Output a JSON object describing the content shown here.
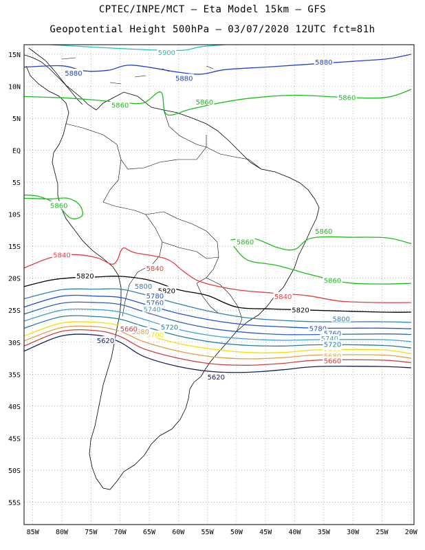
{
  "header": {
    "title_line1": "CPTEC/INPE/MCT –  Eta Model 15km – GFS",
    "title_line2": "Geopotential Height 500hPa – 03/07/2020 12UTC fct=81h"
  },
  "axes": {
    "lat_labels": [
      "15N",
      "10N",
      "5N",
      "EQ",
      "5S",
      "10S",
      "15S",
      "20S",
      "25S",
      "30S",
      "35S",
      "40S",
      "45S",
      "50S",
      "55S"
    ],
    "lat_values": [
      15,
      10,
      5,
      0,
      -5,
      -10,
      -15,
      -20,
      -25,
      -30,
      -35,
      -40,
      -45,
      -50,
      -55
    ],
    "lon_labels": [
      "85W",
      "80W",
      "75W",
      "70W",
      "65W",
      "60W",
      "55W",
      "50W",
      "45W",
      "40W",
      "35W",
      "30W",
      "25W",
      "20W"
    ],
    "lon_values": [
      -85,
      -80,
      -75,
      -70,
      -65,
      -60,
      -55,
      -50,
      -45,
      -40,
      -35,
      -30,
      -25,
      -20
    ],
    "lon_range": [
      -86.5,
      -19.5
    ],
    "lat_range": [
      -58.5,
      16.5
    ]
  },
  "contour_colors": {
    "5900": "#20c0c0",
    "5880": "#1e40d8",
    "5860": "#18c018",
    "5840": "#e83c3c",
    "5820": "#000000",
    "5800": "#2f80b0",
    "5780": "#1f50e0",
    "5760": "#3060c0",
    "5740": "#40a0d0",
    "5720": "#2080a0",
    "5700": "#f0e000",
    "5680": "#e0a040",
    "5660": "#d04040",
    "5620": "#141e60"
  },
  "contours": [
    {
      "level": "5900",
      "label": "5900",
      "pts": [
        [
          -82,
          16.5
        ],
        [
          -70,
          15.9
        ],
        [
          -60,
          15.6
        ],
        [
          -56,
          16.2
        ],
        [
          -52,
          16.5
        ]
      ],
      "lab": [
        -62,
        15.3
      ]
    },
    {
      "level": "5880",
      "label": "5880",
      "pts": [
        [
          -86.5,
          13
        ],
        [
          -80,
          13.2
        ],
        [
          -76,
          12.4
        ],
        [
          -72,
          12.5
        ],
        [
          -68,
          13.3
        ],
        [
          -60,
          12.2
        ],
        [
          -56,
          11.9
        ],
        [
          -52,
          12.6
        ],
        [
          -45,
          13
        ],
        [
          -40,
          13.3
        ],
        [
          -30,
          13.9
        ],
        [
          -24,
          14.3
        ],
        [
          -20,
          15
        ]
      ],
      "lab": [
        -78,
        12.1
      ]
    },
    {
      "level": "5880",
      "label": "5880",
      "pts": [],
      "lab": [
        -59,
        11.3
      ]
    },
    {
      "level": "5880",
      "label": "5880",
      "pts": [],
      "lab": [
        -35,
        13.8
      ]
    },
    {
      "level": "5860",
      "label": "5860",
      "pts": [
        [
          -86.5,
          8.4
        ],
        [
          -80,
          8.2
        ],
        [
          -75,
          7.9
        ],
        [
          -70,
          7.5
        ],
        [
          -66,
          7.4
        ],
        [
          -63,
          9.1
        ],
        [
          -62,
          5.6
        ],
        [
          -58,
          6.4
        ],
        [
          -54,
          7.2
        ],
        [
          -48,
          8.1
        ],
        [
          -40,
          8.6
        ],
        [
          -30,
          8.2
        ],
        [
          -24,
          8.3
        ],
        [
          -20,
          9.5
        ]
      ],
      "lab": [
        -70,
        7.1
      ]
    },
    {
      "level": "5860",
      "label": "5860",
      "pts": [],
      "lab": [
        -55.5,
        7.6
      ]
    },
    {
      "level": "5860",
      "label": "5860",
      "pts": [],
      "lab": [
        -31,
        8.3
      ]
    },
    {
      "level": "5860",
      "label": "5860",
      "pts": [
        [
          -86.5,
          -7
        ],
        [
          -84,
          -7.2
        ],
        [
          -81,
          -8.4
        ],
        [
          -78.5,
          -10.6
        ],
        [
          -76.5,
          -10.2
        ],
        [
          -77,
          -8.5
        ],
        [
          -79,
          -7.5
        ],
        [
          -82,
          -7.6
        ],
        [
          -86.5,
          -7.5
        ]
      ],
      "lab": [
        -80.5,
        -8.6
      ]
    },
    {
      "level": "5860",
      "label": "5860",
      "pts": [
        [
          -51,
          -14
        ],
        [
          -47,
          -13.8
        ],
        [
          -43,
          -15.2
        ],
        [
          -40,
          -15.5
        ],
        [
          -37,
          -13.7
        ],
        [
          -30,
          -13.6
        ],
        [
          -24,
          -13.7
        ],
        [
          -20,
          -14.6
        ]
      ],
      "lab": [
        -48.5,
        -14.3
      ]
    },
    {
      "level": "5860",
      "label": "5860",
      "pts": [],
      "lab": [
        -35,
        -12.6
      ]
    },
    {
      "level": "5860",
      "label": "5860",
      "pts": [
        [
          -50.5,
          -15
        ],
        [
          -48,
          -17.2
        ],
        [
          -43,
          -18
        ],
        [
          -37,
          -19.5
        ],
        [
          -31,
          -20.7
        ],
        [
          -25,
          -20.9
        ],
        [
          -20,
          -20.8
        ]
      ],
      "lab": [
        -33.5,
        -20.3
      ]
    },
    {
      "level": "5840",
      "label": "5840",
      "pts": [
        [
          -86.5,
          -18.4
        ],
        [
          -82,
          -16.8
        ],
        [
          -78,
          -16.3
        ],
        [
          -74,
          -16.8
        ],
        [
          -71.5,
          -17.8
        ],
        [
          -70.5,
          -17.2
        ],
        [
          -69.5,
          -15.3
        ],
        [
          -67.5,
          -16
        ],
        [
          -62,
          -17
        ],
        [
          -59,
          -19
        ],
        [
          -56,
          -20.6
        ],
        [
          -50,
          -21.8
        ],
        [
          -44,
          -22.3
        ],
        [
          -38,
          -22.7
        ],
        [
          -32,
          -23.6
        ],
        [
          -25,
          -23.8
        ],
        [
          -20,
          -23.8
        ]
      ],
      "lab": [
        -80,
        -16.3
      ]
    },
    {
      "level": "5840",
      "label": "5840",
      "pts": [],
      "lab": [
        -64,
        -18.4
      ]
    },
    {
      "level": "5840",
      "label": "5840",
      "pts": [],
      "lab": [
        -42,
        -22.8
      ]
    },
    {
      "level": "5820",
      "label": "5820",
      "pts": [
        [
          -86.5,
          -21.3
        ],
        [
          -82,
          -20.3
        ],
        [
          -78,
          -19.9
        ],
        [
          -74,
          -19.8
        ],
        [
          -70,
          -19.7
        ],
        [
          -65,
          -20.3
        ],
        [
          -60,
          -21.8
        ],
        [
          -55,
          -22.7
        ],
        [
          -50,
          -24.5
        ],
        [
          -44,
          -24.8
        ],
        [
          -37,
          -25
        ],
        [
          -25,
          -25.3
        ],
        [
          -20,
          -25.3
        ]
      ],
      "lab": [
        -76,
        -19.6
      ]
    },
    {
      "level": "5820",
      "label": "5820",
      "pts": [],
      "lab": [
        -62,
        -21.9
      ]
    },
    {
      "level": "5820",
      "label": "5820",
      "pts": [],
      "lab": [
        -39,
        -24.9
      ]
    },
    {
      "level": "5800",
      "label": "5800",
      "pts": [
        [
          -86.5,
          -23.2
        ],
        [
          -80,
          -21.8
        ],
        [
          -74,
          -21.7
        ],
        [
          -70,
          -21.7
        ],
        [
          -66,
          -22.5
        ],
        [
          -60,
          -24
        ],
        [
          -54,
          -25.3
        ],
        [
          -48,
          -26.2
        ],
        [
          -42,
          -26.6
        ],
        [
          -36,
          -26.8
        ],
        [
          -25,
          -26.8
        ],
        [
          -20,
          -26.9
        ]
      ],
      "lab": [
        -66,
        -21.2
      ]
    },
    {
      "level": "5800",
      "label": "5800",
      "pts": [],
      "lab": [
        -32,
        -26.3
      ]
    },
    {
      "level": "5780",
      "label": "5780",
      "pts": [
        [
          -86.5,
          -24.5
        ],
        [
          -80,
          -22.8
        ],
        [
          -74,
          -22.8
        ],
        [
          -70,
          -23
        ],
        [
          -66,
          -24
        ],
        [
          -60,
          -25.5
        ],
        [
          -54,
          -26.6
        ],
        [
          -48,
          -27.3
        ],
        [
          -42,
          -27.6
        ],
        [
          -36,
          -27.8
        ],
        [
          -25,
          -27.8
        ],
        [
          -20,
          -27.9
        ]
      ],
      "lab": [
        -64,
        -22.7
      ]
    },
    {
      "level": "5780",
      "label": "5780",
      "pts": [],
      "lab": [
        -36,
        -27.8
      ]
    },
    {
      "level": "5760",
      "label": "5760",
      "pts": [
        [
          -86.5,
          -25.6
        ],
        [
          -80,
          -23.9
        ],
        [
          -74,
          -23.8
        ],
        [
          -70,
          -24.1
        ],
        [
          -66,
          -25.2
        ],
        [
          -60,
          -26.8
        ],
        [
          -54,
          -27.9
        ],
        [
          -48,
          -28.5
        ],
        [
          -42,
          -28.8
        ],
        [
          -36,
          -28.8
        ],
        [
          -25,
          -28.7
        ],
        [
          -20,
          -28.8
        ]
      ],
      "lab": [
        -64,
        -23.8
      ]
    },
    {
      "level": "5760",
      "label": "5760",
      "pts": [],
      "lab": [
        -33.5,
        -28.6
      ]
    },
    {
      "level": "5740",
      "label": "5740",
      "pts": [
        [
          -86.5,
          -26.7
        ],
        [
          -80,
          -25
        ],
        [
          -74,
          -24.9
        ],
        [
          -70,
          -25.3
        ],
        [
          -66,
          -26.4
        ],
        [
          -60,
          -28
        ],
        [
          -54,
          -29
        ],
        [
          -48,
          -29.5
        ],
        [
          -42,
          -29.7
        ],
        [
          -36,
          -29.6
        ],
        [
          -25,
          -29.6
        ],
        [
          -20,
          -29.9
        ]
      ],
      "lab": [
        -64.5,
        -24.8
      ]
    },
    {
      "level": "5740",
      "label": "5740",
      "pts": [],
      "lab": [
        -34,
        -29.4
      ]
    },
    {
      "level": "5720",
      "label": "5720",
      "pts": [
        [
          -86.5,
          -27.8
        ],
        [
          -80,
          -26
        ],
        [
          -74,
          -26
        ],
        [
          -70,
          -26.4
        ],
        [
          -66,
          -27.5
        ],
        [
          -60,
          -29
        ],
        [
          -54,
          -30
        ],
        [
          -48,
          -30.5
        ],
        [
          -42,
          -30.6
        ],
        [
          -36,
          -30.4
        ],
        [
          -25,
          -30.5
        ],
        [
          -20,
          -30.9
        ]
      ],
      "lab": [
        -61.5,
        -27.6
      ]
    },
    {
      "level": "5720",
      "label": "5720",
      "pts": [],
      "lab": [
        -33.5,
        -30.3
      ]
    },
    {
      "level": "5700",
      "label": "5700",
      "pts": [
        [
          -86.5,
          -29
        ],
        [
          -80,
          -27
        ],
        [
          -74,
          -26.9
        ],
        [
          -70,
          -27.4
        ],
        [
          -66,
          -28.7
        ],
        [
          -60,
          -30.2
        ],
        [
          -54,
          -31.1
        ],
        [
          -48,
          -31.6
        ],
        [
          -42,
          -31.6
        ],
        [
          -36,
          -31.2
        ],
        [
          -25,
          -31.2
        ],
        [
          -20,
          -31.8
        ]
      ],
      "lab": [
        -64,
        -28.8
      ]
    },
    {
      "level": "5700",
      "label": "5700",
      "pts": [],
      "lab": [
        -33.5,
        -31.6
      ]
    },
    {
      "level": "5680",
      "label": "5680",
      "pts": [
        [
          -86.5,
          -29.8
        ],
        [
          -80,
          -27.7
        ],
        [
          -74,
          -27.6
        ],
        [
          -70,
          -28.3
        ],
        [
          -66,
          -29.9
        ],
        [
          -60,
          -31.4
        ],
        [
          -54,
          -32.3
        ],
        [
          -48,
          -32.6
        ],
        [
          -42,
          -32.4
        ],
        [
          -36,
          -32
        ],
        [
          -25,
          -32
        ],
        [
          -20,
          -32.5
        ]
      ],
      "lab": [
        -66.5,
        -28.3
      ]
    },
    {
      "level": "5680",
      "label": "5680",
      "pts": [],
      "lab": [
        -33.5,
        -32.1
      ]
    },
    {
      "level": "5660",
      "label": "5660",
      "pts": [
        [
          -86.5,
          -30.6
        ],
        [
          -80,
          -28.3
        ],
        [
          -74,
          -28.2
        ],
        [
          -70,
          -29.1
        ],
        [
          -66,
          -31
        ],
        [
          -60,
          -32.5
        ],
        [
          -54,
          -33.4
        ],
        [
          -48,
          -33.6
        ],
        [
          -42,
          -33.3
        ],
        [
          -36,
          -32.8
        ],
        [
          -25,
          -32.8
        ],
        [
          -20,
          -33.2
        ]
      ],
      "lab": [
        -68.5,
        -27.9
      ]
    },
    {
      "level": "5660",
      "label": "5660",
      "pts": [],
      "lab": [
        -33.5,
        -32.9
      ]
    },
    {
      "level": "5620",
      "label": "5620",
      "pts": [
        [
          -86.5,
          -31.4
        ],
        [
          -80,
          -29
        ],
        [
          -74,
          -28.9
        ],
        [
          -70,
          -30
        ],
        [
          -66,
          -32.2
        ],
        [
          -60,
          -33.8
        ],
        [
          -54,
          -34.6
        ],
        [
          -48,
          -34.7
        ],
        [
          -42,
          -34.3
        ],
        [
          -36,
          -33.8
        ],
        [
          -25,
          -33.8
        ],
        [
          -20,
          -34
        ]
      ],
      "lab": [
        -72.5,
        -29.7
      ]
    },
    {
      "level": "5620",
      "label": "5620",
      "pts": [],
      "lab": [
        -53.5,
        -35.4
      ]
    }
  ]
}
